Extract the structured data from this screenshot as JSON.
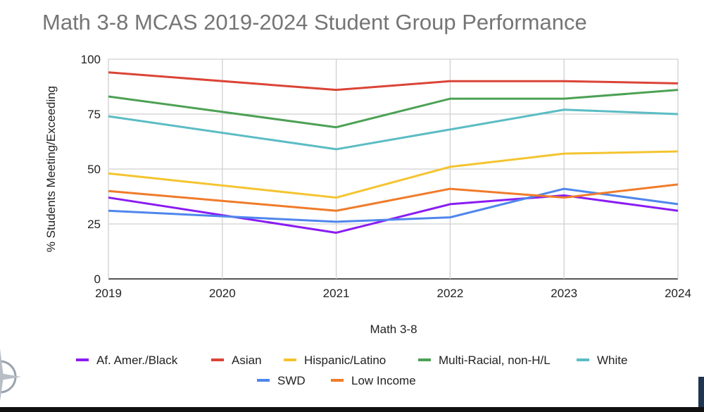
{
  "chart_data": {
    "type": "line",
    "title": "Math 3-8 MCAS 2019-2024 Student Group Performance",
    "xlabel": "Math 3-8",
    "ylabel": "% Students Meeting/Exceeding",
    "x": [
      "2019",
      "2020",
      "2021",
      "2022",
      "2023",
      "2024"
    ],
    "ylim": [
      0,
      100
    ],
    "yticks": [
      "0",
      "25",
      "50",
      "75",
      "100"
    ],
    "grid": true,
    "legend_position": "bottom",
    "series": [
      {
        "name": "Af. Amer./Black",
        "color": "#8a1cf2",
        "values": [
          37,
          null,
          21,
          34,
          38,
          31
        ]
      },
      {
        "name": "Asian",
        "color": "#db4437",
        "values": [
          94,
          null,
          86,
          90,
          90,
          89
        ]
      },
      {
        "name": "Hispanic/Latino",
        "color": "#f4c430",
        "values": [
          48,
          null,
          37,
          51,
          57,
          58
        ]
      },
      {
        "name": "Multi-Racial, non-H/L",
        "color": "#4ca154",
        "values": [
          83,
          null,
          69,
          82,
          82,
          86
        ]
      },
      {
        "name": "White",
        "color": "#5bbcc4",
        "values": [
          74,
          null,
          59,
          68,
          77,
          75
        ]
      },
      {
        "name": "SWD",
        "color": "#4f86ec",
        "values": [
          31,
          null,
          26,
          28,
          41,
          34
        ]
      },
      {
        "name": "Low Income",
        "color": "#f07b2a",
        "values": [
          40,
          null,
          31,
          41,
          37,
          43
        ]
      }
    ]
  }
}
